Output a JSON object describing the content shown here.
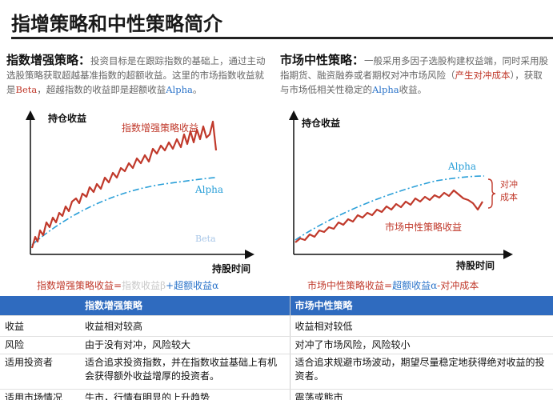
{
  "title": "指增策略和中性策略简介",
  "left_text": {
    "lead": "指数增强策略：",
    "body1": "投资目标是在跟踪指数的基础上，通过主动选股策略获取超越基准指数的超额收益。这里的市场指数收益就是",
    "beta": "Beta",
    "body2": "，超越指数的收益即是超额收益",
    "alpha": "Alpha",
    "end": "。"
  },
  "right_text": {
    "lead": "市场中性策略：",
    "body1": "一般采用多因子选股构建权益端，同时采用股指期货、融资融券或者期权对冲市场风险（",
    "cost": "产生对冲成本",
    "body2": "），获取与市场低相关性稳定的",
    "alpha": "Alpha",
    "end": "收益。"
  },
  "left_chart": {
    "ylabel": "持仓收益",
    "xlabel": "持股时间",
    "series_label": "指数增强策略收益",
    "alpha_label": "Alpha",
    "beta_label": "Beta",
    "colors": {
      "series": "#c0392b",
      "alpha": "#2a9fd8",
      "beta": "#a9c7e8"
    }
  },
  "right_chart": {
    "ylabel": "持仓收益",
    "xlabel": "持股时间",
    "series_label": "市场中性策略收益",
    "alpha_label": "Alpha",
    "hedge_label_1": "对冲",
    "hedge_label_2": "成本",
    "colors": {
      "series": "#c0392b",
      "alpha": "#2a9fd8",
      "hedge": "#c0392b"
    }
  },
  "left_formula": {
    "lhs": "指数增强策略收益=",
    "ghost": "指数收益β",
    "plus": "+",
    "rhs": "超额收益α"
  },
  "right_formula": {
    "lhs": "市场中性策略收益=",
    "mid": "超额收益α",
    "rhs": "-对冲成本"
  },
  "table": {
    "headers": [
      "",
      "指数增强策略",
      "市场中性策略"
    ],
    "rows": [
      [
        "收益",
        "收益相对较高",
        "收益相对较低"
      ],
      [
        "风险",
        "由于没有对冲，风险较大",
        "对冲了市场风险，风险较小"
      ],
      [
        "适用投资者",
        "适合追求投资指数，并在指数收益基础上有机会获得额外收益增厚的投资者。",
        "适合追求规避市场波动，期望尽量稳定地获得绝对收益的投资者。"
      ],
      [
        "适用市场情况",
        "牛市，行情有明显的上升趋势",
        "震荡或熊市"
      ]
    ]
  }
}
